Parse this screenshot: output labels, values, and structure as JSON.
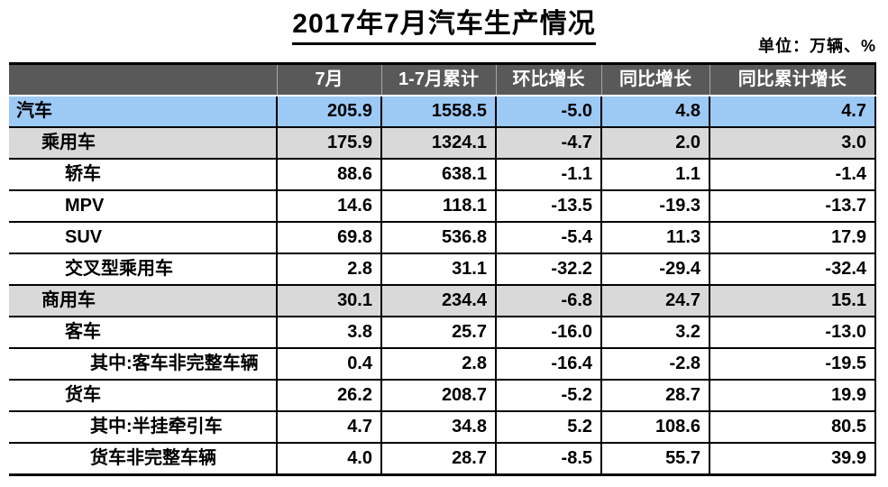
{
  "colors": {
    "header_bg": "#595959",
    "header_text": "#ffffff",
    "total_row_bg": "#9DC9F5",
    "group_row_bg": "#D9D9D9",
    "border": "#000000"
  },
  "chart_data": {
    "type": "table",
    "title": "2017年7月汽车生产情况",
    "unit_note": "单位：万辆、%",
    "columns": [
      "",
      "7月",
      "1-7月累计",
      "环比增长",
      "同比增长",
      "同比累计增长"
    ],
    "rows": [
      {
        "label": "汽车",
        "indent": 0,
        "style": "total",
        "values": [
          "205.9",
          "1558.5",
          "-5.0",
          "4.8",
          "4.7"
        ]
      },
      {
        "label": "乘用车",
        "indent": 1,
        "style": "group",
        "values": [
          "175.9",
          "1324.1",
          "-4.7",
          "2.0",
          "3.0"
        ]
      },
      {
        "label": "轿车",
        "indent": 2,
        "style": "plain",
        "values": [
          "88.6",
          "638.1",
          "-1.1",
          "1.1",
          "-1.4"
        ]
      },
      {
        "label": "MPV",
        "indent": 2,
        "style": "plain",
        "values": [
          "14.6",
          "118.1",
          "-13.5",
          "-19.3",
          "-13.7"
        ]
      },
      {
        "label": "SUV",
        "indent": 2,
        "style": "plain",
        "values": [
          "69.8",
          "536.8",
          "-5.4",
          "11.3",
          "17.9"
        ]
      },
      {
        "label": "交叉型乘用车",
        "indent": 2,
        "style": "plain",
        "values": [
          "2.8",
          "31.1",
          "-32.2",
          "-29.4",
          "-32.4"
        ]
      },
      {
        "label": "商用车",
        "indent": 1,
        "style": "group",
        "values": [
          "30.1",
          "234.4",
          "-6.8",
          "24.7",
          "15.1"
        ]
      },
      {
        "label": "客车",
        "indent": 2,
        "style": "plain",
        "values": [
          "3.8",
          "25.7",
          "-16.0",
          "3.2",
          "-13.0"
        ]
      },
      {
        "label": "其中:客车非完整车辆",
        "indent": 3,
        "style": "plain",
        "values": [
          "0.4",
          "2.8",
          "-16.4",
          "-2.8",
          "-19.5"
        ]
      },
      {
        "label": "货车",
        "indent": 2,
        "style": "plain",
        "values": [
          "26.2",
          "208.7",
          "-5.2",
          "28.7",
          "19.9"
        ]
      },
      {
        "label": "其中:半挂牵引车",
        "indent": 3,
        "style": "plain",
        "values": [
          "4.7",
          "34.8",
          "5.2",
          "108.6",
          "80.5"
        ]
      },
      {
        "label": "货车非完整车辆",
        "indent": 3,
        "style": "plain",
        "values": [
          "4.0",
          "28.7",
          "-8.5",
          "55.7",
          "39.9"
        ]
      }
    ]
  }
}
